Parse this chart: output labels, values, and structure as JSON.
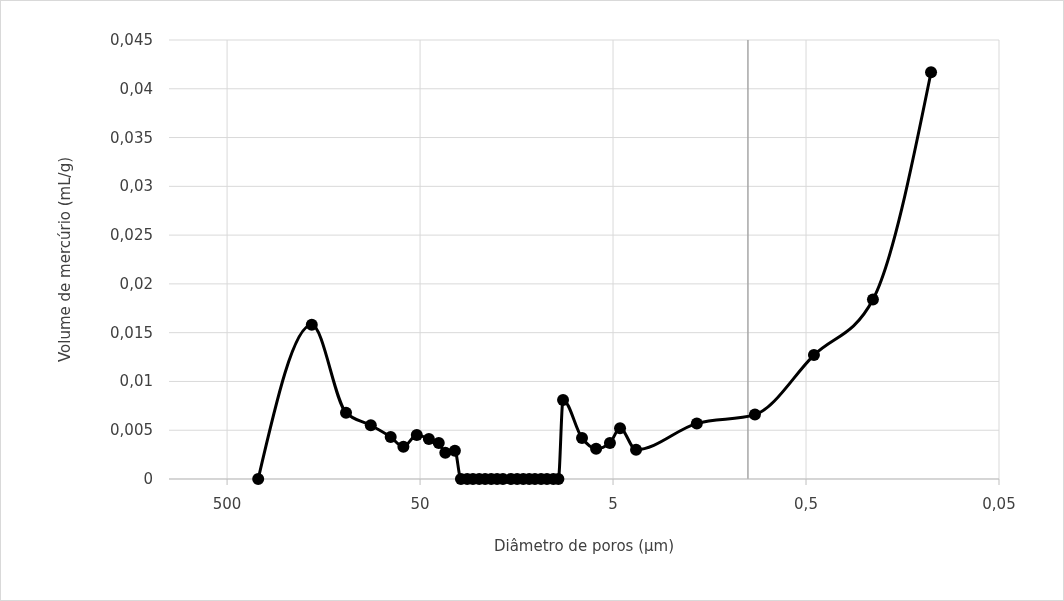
{
  "chart_data": {
    "type": "line",
    "xlabel": "Diâmetro de poros (µm)",
    "ylabel": "Volume de mercúrio (mL/g)",
    "log": "x",
    "grid": true,
    "marker": "circle",
    "xlim": [
      1000,
      0.05
    ],
    "xticks": [
      {
        "value": 500,
        "label": "500"
      },
      {
        "value": 50,
        "label": "50"
      },
      {
        "value": 5,
        "label": "5"
      },
      {
        "value": 0.5,
        "label": "0,5"
      },
      {
        "value": 0.05,
        "label": "0,05"
      }
    ],
    "ylim": [
      0,
      0.045
    ],
    "yticks": [
      {
        "value": 0,
        "label": "0"
      },
      {
        "value": 0.005,
        "label": "0,005"
      },
      {
        "value": 0.01,
        "label": "0,01"
      },
      {
        "value": 0.015,
        "label": "0,015"
      },
      {
        "value": 0.02,
        "label": "0,02"
      },
      {
        "value": 0.025,
        "label": "0,025"
      },
      {
        "value": 0.03,
        "label": "0,03"
      },
      {
        "value": 0.035,
        "label": "0,035"
      },
      {
        "value": 0.04,
        "label": "0,04"
      },
      {
        "value": 0.045,
        "label": "0,045"
      }
    ],
    "ref_lines": [
      {
        "axis": "x",
        "value": 1,
        "color": "#a6a6a6"
      }
    ],
    "series": [
      {
        "color": "#000000",
        "x": [
          345,
          182,
          121,
          90,
          71,
          61,
          52,
          45,
          40,
          37,
          33,
          30.7,
          28.5,
          26.6,
          24.7,
          23,
          21.4,
          19.95,
          18.6,
          16.9,
          15.7,
          14.6,
          13.6,
          12.7,
          11.8,
          11,
          10.2,
          9.6,
          9.08,
          7.24,
          6.12,
          5.19,
          4.6,
          3.8,
          1.84,
          0.92,
          0.455,
          0.225,
          0.1125
        ],
        "values": [
          0,
          0.0158,
          0.0068,
          0.0055,
          0.0043,
          0.0033,
          0.0045,
          0.0041,
          0.0037,
          0.0027,
          0.0029,
          0,
          0,
          0,
          0,
          0,
          0,
          0,
          0,
          0,
          0,
          0,
          0,
          0,
          0,
          0,
          0,
          0,
          0.0081,
          0.0042,
          0.0031,
          0.0037,
          0.0052,
          0.003,
          0.0057,
          0.0066,
          0.0127,
          0.0184,
          0.0417
        ]
      }
    ]
  }
}
